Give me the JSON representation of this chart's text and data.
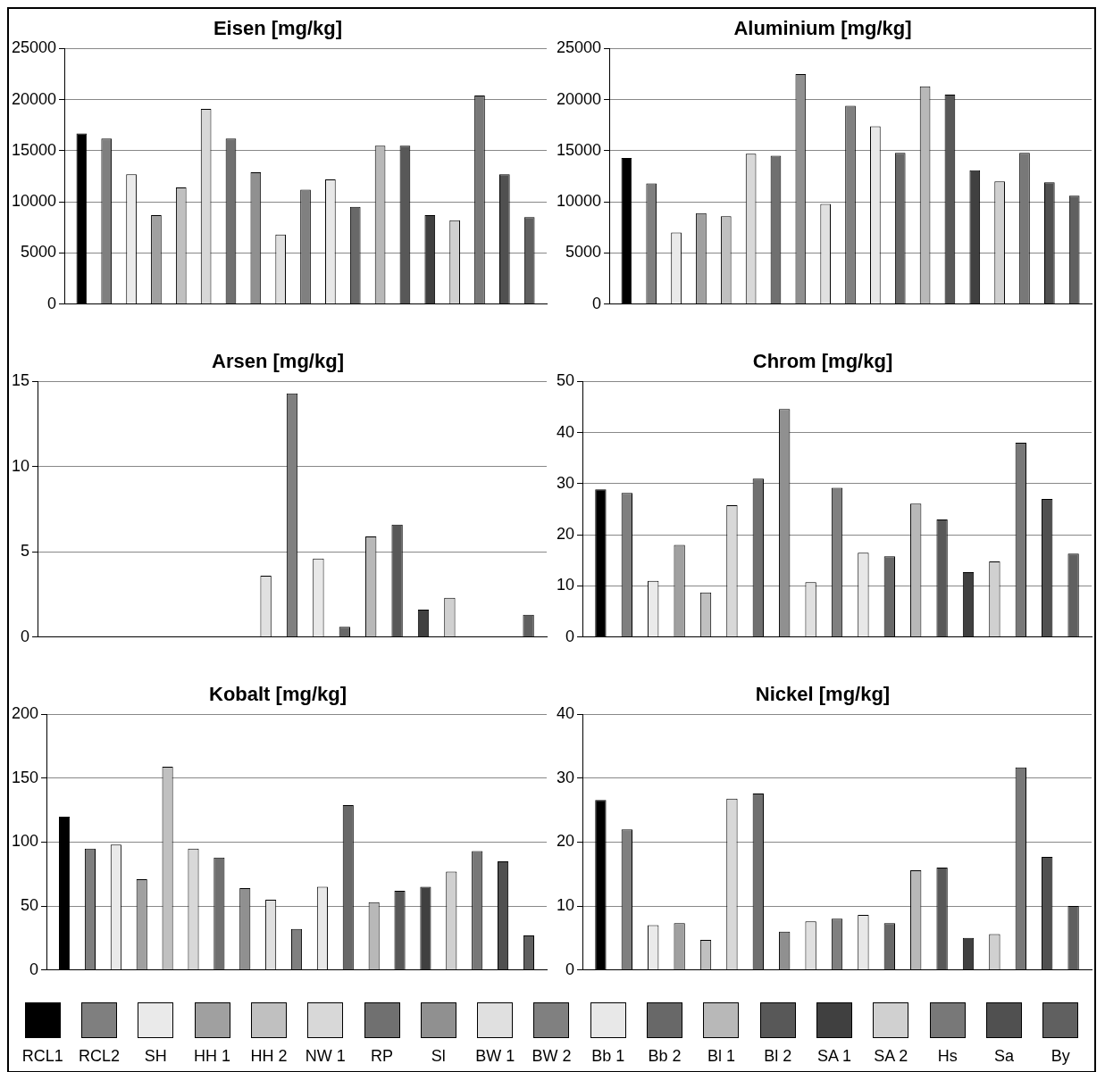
{
  "chart_data": [
    {
      "type": "bar",
      "title": "Eisen [mg/kg]",
      "categories": [
        null
      ],
      "ylim": [
        0,
        25000
      ],
      "yticks": [
        0,
        5000,
        10000,
        15000,
        20000,
        25000
      ],
      "grid": "y",
      "legend": "bottom",
      "series": [
        {
          "name": "RCL1",
          "color": "#000000",
          "values": [
            16700
          ]
        },
        {
          "name": "RCL2",
          "color": "#7f7f7f",
          "values": [
            16200
          ]
        },
        {
          "name": "SH",
          "color": "#eaeaea",
          "values": [
            12700
          ]
        },
        {
          "name": "HH 1",
          "color": "#a0a0a0",
          "values": [
            8700
          ]
        },
        {
          "name": "HH 2",
          "color": "#c0c0c0",
          "values": [
            11400
          ]
        },
        {
          "name": "NW 1",
          "color": "#d8d8d8",
          "values": [
            19100
          ]
        },
        {
          "name": "RP",
          "color": "#707070",
          "values": [
            16200
          ]
        },
        {
          "name": "Sl",
          "color": "#909090",
          "values": [
            12900
          ]
        },
        {
          "name": "BW 1",
          "color": "#e0e0e0",
          "values": [
            6800
          ]
        },
        {
          "name": "BW 2",
          "color": "#808080",
          "values": [
            11200
          ]
        },
        {
          "name": "Bb 1",
          "color": "#e8e8e8",
          "values": [
            12200
          ]
        },
        {
          "name": "Bb 2",
          "color": "#686868",
          "values": [
            9500
          ]
        },
        {
          "name": "Bl 1",
          "color": "#b8b8b8",
          "values": [
            15500
          ]
        },
        {
          "name": "Bl 2",
          "color": "#585858",
          "values": [
            15500
          ]
        },
        {
          "name": "SA 1",
          "color": "#404040",
          "values": [
            8700
          ]
        },
        {
          "name": "SA 2",
          "color": "#d0d0d0",
          "values": [
            8200
          ]
        },
        {
          "name": "Hs",
          "color": "#787878",
          "values": [
            20400
          ]
        },
        {
          "name": "Sa",
          "color": "#505050",
          "values": [
            12700
          ]
        },
        {
          "name": "By",
          "color": "#606060",
          "values": [
            8500
          ]
        }
      ]
    },
    {
      "type": "bar",
      "title": "Aluminium [mg/kg]",
      "categories": [
        null
      ],
      "ylim": [
        0,
        25000
      ],
      "yticks": [
        0,
        5000,
        10000,
        15000,
        20000,
        25000
      ],
      "grid": "y",
      "series": [
        {
          "color": "#000000",
          "values": [
            14300
          ]
        },
        {
          "color": "#7f7f7f",
          "values": [
            11800
          ]
        },
        {
          "color": "#eaeaea",
          "values": [
            7000
          ]
        },
        {
          "color": "#a0a0a0",
          "values": [
            8900
          ]
        },
        {
          "color": "#c0c0c0",
          "values": [
            8600
          ]
        },
        {
          "color": "#d8d8d8",
          "values": [
            14700
          ]
        },
        {
          "color": "#707070",
          "values": [
            14500
          ]
        },
        {
          "color": "#909090",
          "values": [
            22500
          ]
        },
        {
          "color": "#e0e0e0",
          "values": [
            9800
          ]
        },
        {
          "color": "#808080",
          "values": [
            19400
          ]
        },
        {
          "color": "#e8e8e8",
          "values": [
            17400
          ]
        },
        {
          "color": "#686868",
          "values": [
            14800
          ]
        },
        {
          "color": "#b8b8b8",
          "values": [
            21300
          ]
        },
        {
          "color": "#585858",
          "values": [
            20500
          ]
        },
        {
          "color": "#404040",
          "values": [
            13100
          ]
        },
        {
          "color": "#d0d0d0",
          "values": [
            12000
          ]
        },
        {
          "color": "#787878",
          "values": [
            14800
          ]
        },
        {
          "color": "#505050",
          "values": [
            11900
          ]
        },
        {
          "color": "#606060",
          "values": [
            10600
          ]
        }
      ]
    },
    {
      "type": "bar",
      "title": "Arsen [mg/kg]",
      "categories": [
        null
      ],
      "ylim": [
        0,
        15
      ],
      "yticks": [
        0,
        5,
        10,
        15
      ],
      "grid": "y",
      "series": [
        {
          "color": "#000000",
          "values": [
            null
          ]
        },
        {
          "color": "#7f7f7f",
          "values": [
            null
          ]
        },
        {
          "color": "#eaeaea",
          "values": [
            null
          ]
        },
        {
          "color": "#a0a0a0",
          "values": [
            null
          ]
        },
        {
          "color": "#c0c0c0",
          "values": [
            null
          ]
        },
        {
          "color": "#d8d8d8",
          "values": [
            null
          ]
        },
        {
          "color": "#707070",
          "values": [
            null
          ]
        },
        {
          "color": "#909090",
          "values": [
            null
          ]
        },
        {
          "color": "#e0e0e0",
          "values": [
            3.6
          ]
        },
        {
          "color": "#808080",
          "values": [
            14.3
          ]
        },
        {
          "color": "#e8e8e8",
          "values": [
            4.6
          ]
        },
        {
          "color": "#686868",
          "values": [
            0.6
          ]
        },
        {
          "color": "#b8b8b8",
          "values": [
            5.9
          ]
        },
        {
          "color": "#585858",
          "values": [
            6.6
          ]
        },
        {
          "color": "#404040",
          "values": [
            1.6
          ]
        },
        {
          "color": "#d0d0d0",
          "values": [
            2.3
          ]
        },
        {
          "color": "#787878",
          "values": [
            null
          ]
        },
        {
          "color": "#505050",
          "values": [
            null
          ]
        },
        {
          "color": "#606060",
          "values": [
            1.3
          ]
        }
      ]
    },
    {
      "type": "bar",
      "title": "Chrom [mg/kg]",
      "categories": [
        null
      ],
      "ylim": [
        0,
        50
      ],
      "yticks": [
        0,
        10,
        20,
        30,
        40,
        50
      ],
      "grid": "y",
      "series": [
        {
          "color": "#000000",
          "values": [
            28.9
          ]
        },
        {
          "color": "#7f7f7f",
          "values": [
            28.2
          ]
        },
        {
          "color": "#eaeaea",
          "values": [
            11
          ]
        },
        {
          "color": "#a0a0a0",
          "values": [
            18
          ]
        },
        {
          "color": "#c0c0c0",
          "values": [
            8.7
          ]
        },
        {
          "color": "#d8d8d8",
          "values": [
            25.8
          ]
        },
        {
          "color": "#707070",
          "values": [
            31
          ]
        },
        {
          "color": "#909090",
          "values": [
            44.6
          ]
        },
        {
          "color": "#e0e0e0",
          "values": [
            10.7
          ]
        },
        {
          "color": "#808080",
          "values": [
            29.2
          ]
        },
        {
          "color": "#e8e8e8",
          "values": [
            16.5
          ]
        },
        {
          "color": "#686868",
          "values": [
            15.8
          ]
        },
        {
          "color": "#b8b8b8",
          "values": [
            26.1
          ]
        },
        {
          "color": "#585858",
          "values": [
            23
          ]
        },
        {
          "color": "#404040",
          "values": [
            12.7
          ]
        },
        {
          "color": "#d0d0d0",
          "values": [
            14.8
          ]
        },
        {
          "color": "#787878",
          "values": [
            38
          ]
        },
        {
          "color": "#505050",
          "values": [
            27
          ]
        },
        {
          "color": "#606060",
          "values": [
            16.3
          ]
        }
      ]
    },
    {
      "type": "bar",
      "title": "Kobalt [mg/kg]",
      "categories": [
        null
      ],
      "ylim": [
        0,
        200
      ],
      "yticks": [
        0,
        50,
        100,
        150,
        200
      ],
      "grid": "y",
      "series": [
        {
          "color": "#000000",
          "values": [
            120
          ]
        },
        {
          "color": "#7f7f7f",
          "values": [
            95
          ]
        },
        {
          "color": "#eaeaea",
          "values": [
            98
          ]
        },
        {
          "color": "#a0a0a0",
          "values": [
            71
          ]
        },
        {
          "color": "#c0c0c0",
          "values": [
            159
          ]
        },
        {
          "color": "#d8d8d8",
          "values": [
            95
          ]
        },
        {
          "color": "#707070",
          "values": [
            88
          ]
        },
        {
          "color": "#909090",
          "values": [
            64
          ]
        },
        {
          "color": "#e0e0e0",
          "values": [
            55
          ]
        },
        {
          "color": "#808080",
          "values": [
            32
          ]
        },
        {
          "color": "#e8e8e8",
          "values": [
            65
          ]
        },
        {
          "color": "#686868",
          "values": [
            129
          ]
        },
        {
          "color": "#b8b8b8",
          "values": [
            53
          ]
        },
        {
          "color": "#585858",
          "values": [
            62
          ]
        },
        {
          "color": "#404040",
          "values": [
            65
          ]
        },
        {
          "color": "#d0d0d0",
          "values": [
            77
          ]
        },
        {
          "color": "#787878",
          "values": [
            93
          ]
        },
        {
          "color": "#505050",
          "values": [
            85
          ]
        },
        {
          "color": "#606060",
          "values": [
            27
          ]
        }
      ]
    },
    {
      "type": "bar",
      "title": "Nickel [mg/kg]",
      "categories": [
        null
      ],
      "ylim": [
        0,
        40
      ],
      "yticks": [
        0,
        10,
        20,
        30,
        40
      ],
      "grid": "y",
      "series": [
        {
          "color": "#000000",
          "values": [
            26.6
          ]
        },
        {
          "color": "#7f7f7f",
          "values": [
            22
          ]
        },
        {
          "color": "#eaeaea",
          "values": [
            7
          ]
        },
        {
          "color": "#a0a0a0",
          "values": [
            7.3
          ]
        },
        {
          "color": "#c0c0c0",
          "values": [
            4.7
          ]
        },
        {
          "color": "#d8d8d8",
          "values": [
            26.8
          ]
        },
        {
          "color": "#707070",
          "values": [
            27.6
          ]
        },
        {
          "color": "#909090",
          "values": [
            6
          ]
        },
        {
          "color": "#e0e0e0",
          "values": [
            7.6
          ]
        },
        {
          "color": "#808080",
          "values": [
            8
          ]
        },
        {
          "color": "#e8e8e8",
          "values": [
            8.6
          ]
        },
        {
          "color": "#686868",
          "values": [
            7.3
          ]
        },
        {
          "color": "#b8b8b8",
          "values": [
            15.6
          ]
        },
        {
          "color": "#585858",
          "values": [
            16
          ]
        },
        {
          "color": "#404040",
          "values": [
            5
          ]
        },
        {
          "color": "#d0d0d0",
          "values": [
            5.6
          ]
        },
        {
          "color": "#787878",
          "values": [
            31.7
          ]
        },
        {
          "color": "#505050",
          "values": [
            17.7
          ]
        },
        {
          "color": "#606060",
          "values": [
            10
          ]
        }
      ]
    }
  ]
}
